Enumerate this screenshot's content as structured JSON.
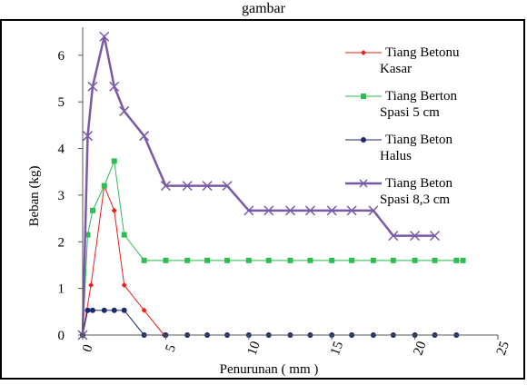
{
  "chart_data": {
    "type": "line",
    "top_caption": "gambar",
    "xlabel": "Penurunan ( mm )",
    "ylabel": "Beban (kg)",
    "xlim": [
      0,
      25
    ],
    "ylim": [
      0,
      6.6
    ],
    "xticks": [
      0,
      5,
      10,
      15,
      20,
      25
    ],
    "yticks": [
      0,
      1,
      2,
      3,
      4,
      5,
      6
    ],
    "grid": false,
    "legend_position": "right",
    "series": [
      {
        "name": [
          "Tiang Betonu",
          "Kasar"
        ],
        "color": "#e8201a",
        "marker": "diamond",
        "line_width": 1,
        "x": [
          0,
          0.5,
          1.3,
          1.9,
          2.5,
          3.7,
          4.9
        ],
        "y": [
          0,
          1.07,
          3.2,
          2.67,
          1.07,
          0.53,
          0
        ]
      },
      {
        "name": [
          "Tiang Berton",
          "Spasi 5 cm"
        ],
        "color": "#2ebd52",
        "marker": "square",
        "line_width": 1,
        "x": [
          0,
          0.3,
          0.6,
          1.3,
          1.9,
          2.5,
          3.7,
          5.0,
          6.3,
          7.5,
          8.7,
          10.0,
          11.2,
          12.5,
          13.7,
          15.0,
          16.2,
          17.5,
          18.7,
          20.0,
          21.2,
          22.5,
          22.9
        ],
        "y": [
          0,
          2.15,
          2.67,
          3.2,
          3.73,
          2.15,
          1.6,
          1.6,
          1.6,
          1.6,
          1.6,
          1.6,
          1.6,
          1.6,
          1.6,
          1.6,
          1.6,
          1.6,
          1.6,
          1.6,
          1.6,
          1.6,
          1.6
        ]
      },
      {
        "name": [
          "Tiang Beton",
          "Halus"
        ],
        "color": "#1a2a6b",
        "marker": "circle",
        "line_width": 1,
        "x": [
          0,
          0.3,
          0.6,
          1.3,
          1.9,
          2.5,
          3.7,
          5.0,
          6.3,
          7.5,
          8.7,
          10.0,
          11.2,
          12.5,
          13.7,
          15.0,
          16.2,
          17.5,
          18.7,
          20.0,
          21.2,
          22.5
        ],
        "y": [
          0,
          0.53,
          0.53,
          0.53,
          0.53,
          0.53,
          0,
          0,
          0,
          0,
          0,
          0,
          0,
          0,
          0,
          0,
          0,
          0,
          0,
          0,
          0,
          0
        ]
      },
      {
        "name": [
          "Tiang Beton",
          "Spasi 8,3 cm"
        ],
        "color": "#7a5aa8",
        "marker": "x",
        "line_width": 2.5,
        "x": [
          0,
          0.3,
          0.6,
          1.3,
          1.9,
          2.5,
          3.7,
          5.0,
          6.3,
          7.5,
          8.7,
          10.0,
          11.2,
          12.5,
          13.7,
          15.0,
          16.2,
          17.5,
          18.7,
          20.0,
          21.2
        ],
        "y": [
          0,
          4.27,
          5.33,
          6.4,
          5.33,
          4.8,
          4.27,
          3.2,
          3.2,
          3.2,
          3.2,
          2.67,
          2.67,
          2.67,
          2.67,
          2.67,
          2.67,
          2.67,
          2.13,
          2.13,
          2.13
        ]
      }
    ]
  }
}
